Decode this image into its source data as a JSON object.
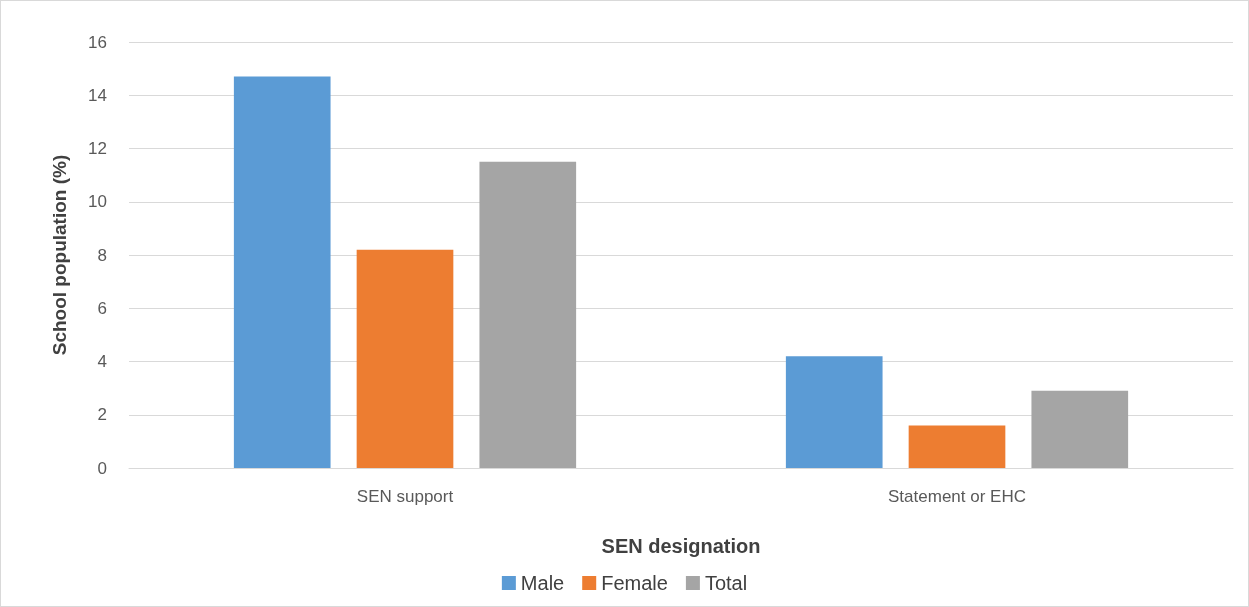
{
  "chart_data": {
    "type": "bar",
    "xlabel": "SEN designation",
    "ylabel": "School population (%)",
    "categories": [
      "SEN support",
      "Statement or EHC"
    ],
    "series": [
      {
        "name": "Male",
        "color": "#5b9bd5",
        "values": [
          14.7,
          4.2
        ]
      },
      {
        "name": "Female",
        "color": "#ed7d31",
        "values": [
          8.2,
          1.6
        ]
      },
      {
        "name": "Total",
        "color": "#a5a5a5",
        "values": [
          11.5,
          2.9
        ]
      }
    ],
    "ylim": [
      0,
      16
    ],
    "yticks": [
      0,
      2,
      4,
      6,
      8,
      10,
      12,
      14,
      16
    ],
    "grid": "y",
    "legend": "bottom"
  }
}
